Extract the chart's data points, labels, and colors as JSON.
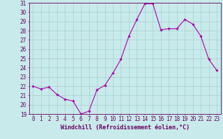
{
  "x": [
    0,
    1,
    2,
    3,
    4,
    5,
    6,
    7,
    8,
    9,
    10,
    11,
    12,
    13,
    14,
    15,
    16,
    17,
    18,
    19,
    20,
    21,
    22,
    23
  ],
  "y": [
    22.0,
    21.7,
    21.9,
    21.1,
    20.6,
    20.4,
    19.0,
    19.3,
    21.6,
    22.1,
    23.4,
    24.9,
    27.4,
    29.2,
    30.9,
    30.9,
    28.1,
    28.2,
    28.2,
    29.2,
    28.7,
    27.4,
    24.9,
    23.7
  ],
  "line_color": "#aa00aa",
  "marker": "D",
  "marker_size": 1.8,
  "bg_color": "#c8eaea",
  "grid_color": "#a0c8c8",
  "axis_color": "#660066",
  "spine_color": "#660066",
  "ylim": [
    19,
    31
  ],
  "yticks": [
    19,
    20,
    21,
    22,
    23,
    24,
    25,
    26,
    27,
    28,
    29,
    30,
    31
  ],
  "xticks": [
    0,
    1,
    2,
    3,
    4,
    5,
    6,
    7,
    8,
    9,
    10,
    11,
    12,
    13,
    14,
    15,
    16,
    17,
    18,
    19,
    20,
    21,
    22,
    23
  ],
  "xlabel": "Windchill (Refroidissement éolien,°C)",
  "xlabel_fontsize": 6.0,
  "tick_fontsize": 5.5,
  "line_width": 0.8
}
